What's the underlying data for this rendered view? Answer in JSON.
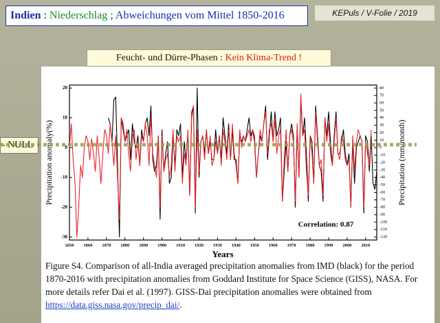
{
  "header": {
    "title_parts": [
      "Indien",
      " : ",
      "Niederschlag",
      " ; Abweichungen vom Mittel 1850-2016"
    ],
    "credit": "KEPuls / V-Folie / 2019"
  },
  "banner": {
    "parts": [
      "Feucht- und Dürre-Phasen : ",
      "Kein Klima-Trend !"
    ]
  },
  "null_label": "- NULL",
  "caption": {
    "text": "Figure S4. Comparison of all-India averaged precipitation anomalies from IMD (black) for the period 1870-2016 with precipitation anomalies from Goddard Institute for Space Science (GISS), NASA. For more details refer Dai et al. (1997). GISS-Dai precipitation anomalies were obtained from ",
    "link": "https://data.giss.nasa.gov/precip_dai/",
    "end": "."
  },
  "chart_data": {
    "type": "line",
    "ylabel": "Precipitation anomaly(%)",
    "y2label": "Precipitation (mm/month)",
    "xlabel": "Years",
    "annotation": "Correlation: 0.87",
    "xlim": [
      1850,
      2016
    ],
    "xticks": [
      1850,
      1860,
      1870,
      1880,
      1890,
      1900,
      1910,
      1920,
      1930,
      1940,
      1950,
      1960,
      1970,
      1980,
      1990,
      2000,
      2010
    ],
    "ylim": [
      -31,
      21
    ],
    "yticks": [
      -30,
      -20,
      -10,
      0,
      10,
      20
    ],
    "y2lim": [
      -124,
      84
    ],
    "y2ticks": [
      -120,
      -110,
      -100,
      -90,
      -80,
      -70,
      -60,
      -50,
      -40,
      -30,
      -20,
      -10,
      0,
      10,
      20,
      30,
      40,
      50,
      60,
      70,
      80
    ],
    "x": [
      1850,
      1851,
      1852,
      1853,
      1854,
      1855,
      1856,
      1857,
      1858,
      1859,
      1860,
      1861,
      1862,
      1863,
      1864,
      1865,
      1866,
      1867,
      1868,
      1869,
      1870,
      1871,
      1872,
      1873,
      1874,
      1875,
      1876,
      1877,
      1878,
      1879,
      1880,
      1881,
      1882,
      1883,
      1884,
      1885,
      1886,
      1887,
      1888,
      1889,
      1890,
      1891,
      1892,
      1893,
      1894,
      1895,
      1896,
      1897,
      1898,
      1899,
      1900,
      1901,
      1902,
      1903,
      1904,
      1905,
      1906,
      1907,
      1908,
      1909,
      1910,
      1911,
      1912,
      1913,
      1914,
      1915,
      1916,
      1917,
      1918,
      1919,
      1920,
      1921,
      1922,
      1923,
      1924,
      1925,
      1926,
      1927,
      1928,
      1929,
      1930,
      1931,
      1932,
      1933,
      1934,
      1935,
      1936,
      1937,
      1938,
      1939,
      1940,
      1941,
      1942,
      1943,
      1944,
      1945,
      1946,
      1947,
      1948,
      1949,
      1950,
      1951,
      1952,
      1953,
      1954,
      1955,
      1956,
      1957,
      1958,
      1959,
      1960,
      1961,
      1962,
      1963,
      1964,
      1965,
      1966,
      1967,
      1968,
      1969,
      1970,
      1971,
      1972,
      1973,
      1974,
      1975,
      1976,
      1977,
      1978,
      1979,
      1980,
      1981,
      1982,
      1983,
      1984,
      1985,
      1986,
      1987,
      1988,
      1989,
      1990,
      1991,
      1992,
      1993,
      1994,
      1995,
      1996,
      1997,
      1998,
      1999,
      2000,
      2001,
      2002,
      2003,
      2004,
      2005,
      2006,
      2007,
      2008,
      2009,
      2010,
      2011,
      2012,
      2013,
      2014,
      2015,
      2016
    ],
    "series": [
      {
        "color": "#000000",
        "values": [
          null,
          null,
          null,
          null,
          null,
          null,
          null,
          null,
          null,
          null,
          null,
          null,
          null,
          null,
          null,
          null,
          null,
          null,
          null,
          null,
          null,
          10,
          8,
          2,
          16,
          17,
          -6,
          -30,
          10,
          6,
          2,
          4,
          6,
          -4,
          8,
          2,
          0,
          4,
          -6,
          6,
          2,
          8,
          10,
          4,
          14,
          -4,
          -8,
          -6,
          4,
          -24,
          6,
          -8,
          -2,
          2,
          -12,
          -10,
          4,
          -6,
          6,
          4,
          8,
          -10,
          2,
          -4,
          4,
          -16,
          10,
          14,
          -22,
          20,
          -10,
          2,
          4,
          -2,
          6,
          -2,
          2,
          -4,
          -4,
          6,
          -2,
          4,
          -4,
          10,
          4,
          -2,
          8,
          -4,
          6,
          -4,
          -4,
          -12,
          4,
          2,
          4,
          2,
          6,
          10,
          4,
          6,
          2,
          -10,
          -2,
          4,
          2,
          8,
          14,
          -4,
          4,
          12,
          2,
          12,
          4,
          6,
          10,
          -18,
          -8,
          2,
          -8,
          4,
          8,
          4,
          -20,
          6,
          -10,
          16,
          4,
          10,
          -2,
          -18,
          4,
          2,
          -12,
          14,
          4,
          -6,
          -8,
          -18,
          10,
          4,
          12,
          2,
          -6,
          4,
          12,
          -2,
          -2,
          2,
          6,
          -2,
          -6,
          -2,
          -20,
          2,
          -12,
          0,
          2,
          4,
          2,
          -22,
          4,
          2,
          -8,
          4,
          -12,
          -14,
          -8
        ]
      },
      {
        "color": "#e8242a",
        "axis": "y2",
        "values": [
          0,
          32,
          -16,
          -48,
          -120,
          -80,
          -24,
          -40,
          0,
          16,
          8,
          -16,
          12,
          -8,
          -32,
          16,
          -12,
          -48,
          -8,
          24,
          16,
          -8,
          32,
          8,
          -24,
          16,
          -40,
          -96,
          40,
          32,
          8,
          24,
          -8,
          -32,
          16,
          24,
          -16,
          8,
          -24,
          16,
          8,
          32,
          16,
          -24,
          40,
          -8,
          -24,
          -40,
          16,
          -80,
          16,
          -32,
          -16,
          -8,
          -40,
          -24,
          24,
          -32,
          16,
          8,
          16,
          -48,
          -8,
          -24,
          24,
          -64,
          48,
          56,
          -80,
          24,
          -32,
          8,
          16,
          -16,
          24,
          -8,
          16,
          -24,
          -16,
          8,
          -8,
          16,
          -24,
          24,
          8,
          -16,
          24,
          -16,
          32,
          -8,
          -24,
          -48,
          24,
          0,
          16,
          8,
          16,
          24,
          8,
          24,
          16,
          -40,
          -8,
          24,
          8,
          32,
          48,
          -8,
          24,
          32,
          8,
          40,
          -8,
          16,
          24,
          -72,
          -16,
          24,
          -32,
          16,
          24,
          8,
          -72,
          32,
          -40,
          72,
          16,
          24,
          -32,
          -64,
          16,
          -8,
          -48,
          48,
          8,
          -24,
          -16,
          -64,
          40,
          8,
          32,
          -8,
          -24,
          8,
          40,
          -8,
          -16,
          16,
          8,
          -16,
          -24,
          -16,
          -80,
          16,
          -32,
          8,
          24,
          16,
          8,
          -80,
          8,
          -8,
          -24,
          24,
          null,
          null,
          null
        ]
      }
    ]
  }
}
